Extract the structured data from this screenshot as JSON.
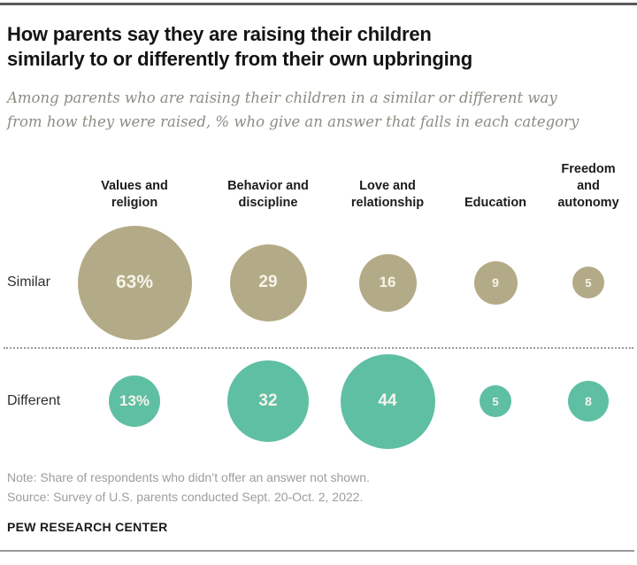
{
  "header": {
    "title": "How parents say they are raising their children\nsimilarly to or differently from their own upbringing",
    "subtitle": "Among parents who are raising their children in a similar or different way\nfrom how they were raised, % who give an answer that falls in each category"
  },
  "chart_data": {
    "type": "bubble",
    "title": "How parents say they are raising their children similarly to or differently from their own upbringing",
    "categories": [
      "Values and religion",
      "Behavior and discipline",
      "Love and relationship",
      "Education",
      "Freedom and autonomy"
    ],
    "series": [
      {
        "name": "Similar",
        "values": [
          63,
          29,
          16,
          9,
          5
        ],
        "labels": [
          "63%",
          "29",
          "16",
          "9",
          "5"
        ],
        "color": "#b3ab87"
      },
      {
        "name": "Different",
        "values": [
          13,
          32,
          44,
          5,
          8
        ],
        "labels": [
          "13%",
          "32",
          "44",
          "5",
          "8"
        ],
        "color": "#5fbfa3"
      }
    ],
    "value_unit": "%",
    "legend_position": "none",
    "grid": false,
    "bubble_scaling": "area-proportional"
  },
  "footer": {
    "note": "Note: Share of respondents who didn’t offer an answer not shown.",
    "source": "Source: Survey of U.S. parents conducted Sept. 20-Oct. 2, 2022.",
    "brand": "PEW RESEARCH CENTER"
  }
}
